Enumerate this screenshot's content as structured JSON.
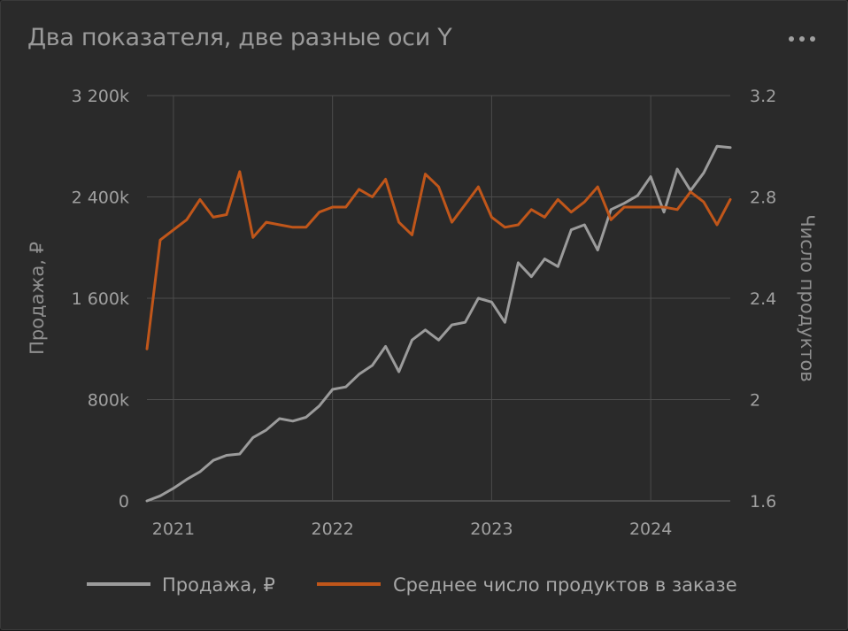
{
  "title": "Два показателя, две разные оси Y",
  "menu_icon": "more-horizontal-icon",
  "chart_data": {
    "type": "line",
    "title": "Два показателя, две разные оси Y",
    "xlabel": "",
    "x_ticks": [
      "2021",
      "2022",
      "2023",
      "2024"
    ],
    "x_start": "2020-11",
    "x_end": "2024-07",
    "y_left": {
      "label": "Продажа, ₽",
      "range": [
        0,
        3200000
      ],
      "ticks": [
        0,
        800000,
        1600000,
        2400000,
        3200000
      ],
      "tick_labels": [
        "0",
        "800k",
        "1 600k",
        "2 400k",
        "3 200k"
      ]
    },
    "y_right": {
      "label": "Число продуктов",
      "range": [
        1.6,
        3.2
      ],
      "ticks": [
        1.6,
        2.0,
        2.4,
        2.8,
        3.2
      ],
      "tick_labels": [
        "1.6",
        "2",
        "2.4",
        "2.8",
        "3.2"
      ]
    },
    "grid": true,
    "legend_position": "bottom",
    "series": [
      {
        "name": "Продажа, ₽",
        "axis": "left",
        "color": "#9b9b9b",
        "values": [
          0,
          40000,
          100000,
          170000,
          230000,
          320000,
          360000,
          370000,
          500000,
          560000,
          650000,
          630000,
          660000,
          750000,
          880000,
          900000,
          1000000,
          1070000,
          1220000,
          1020000,
          1270000,
          1350000,
          1270000,
          1390000,
          1410000,
          1600000,
          1570000,
          1410000,
          1880000,
          1770000,
          1910000,
          1850000,
          2140000,
          2180000,
          1980000,
          2300000,
          2350000,
          2410000,
          2560000,
          2280000,
          2620000,
          2450000,
          2590000,
          2800000,
          2790000
        ]
      },
      {
        "name": "Среднее число продуктов в заказе",
        "axis": "right",
        "color": "#c0561a",
        "values": [
          2.2,
          2.63,
          2.67,
          2.71,
          2.79,
          2.72,
          2.73,
          2.9,
          2.64,
          2.7,
          2.69,
          2.68,
          2.68,
          2.74,
          2.76,
          2.76,
          2.83,
          2.8,
          2.87,
          2.7,
          2.65,
          2.89,
          2.84,
          2.7,
          2.77,
          2.84,
          2.72,
          2.68,
          2.69,
          2.75,
          2.72,
          2.79,
          2.74,
          2.78,
          2.84,
          2.71,
          2.76,
          2.76,
          2.76,
          2.76,
          2.75,
          2.82,
          2.78,
          2.69,
          2.79
        ]
      }
    ]
  }
}
